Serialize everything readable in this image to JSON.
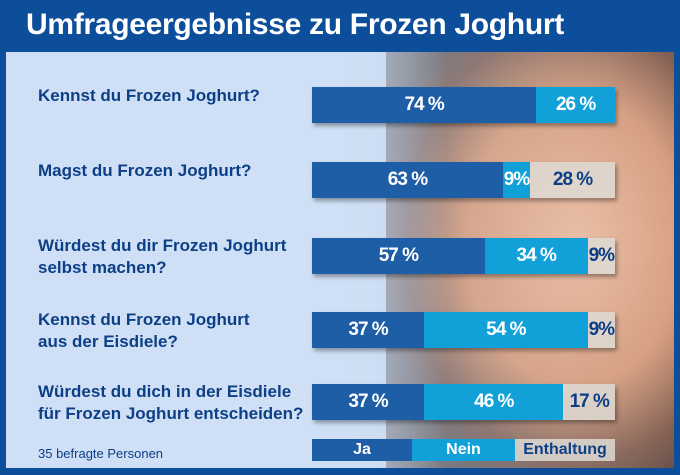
{
  "title": "Umfrageergebnisse zu Frozen Joghurt",
  "footnote": "35 befragte Personen",
  "colors": {
    "ja": "#1d5ea6",
    "nein": "#12a0d8",
    "enthaltung": "#dedad4",
    "header": "#0d4e9b"
  },
  "chart_data": {
    "type": "bar",
    "orientation": "horizontal",
    "stacked": true,
    "unit": "%",
    "categories": [
      [
        "Kennst du Frozen Joghurt?"
      ],
      [
        "Magst du Frozen Joghurt?"
      ],
      [
        "Würdest du dir Frozen Joghurt",
        "selbst machen?"
      ],
      [
        "Kennst du Frozen Joghurt",
        "aus der Eisdiele?"
      ],
      [
        "Würdest du dich in der Eisdiele",
        "für Frozen Joghurt entscheiden?"
      ]
    ],
    "series": [
      {
        "name": "Ja",
        "values": [
          74,
          63,
          57,
          37,
          37
        ],
        "labels": [
          "74 %",
          "63 %",
          "57 %",
          "37 %",
          "37 %"
        ]
      },
      {
        "name": "Nein",
        "values": [
          26,
          9,
          34,
          54,
          46
        ],
        "labels": [
          "26 %",
          "9%",
          "34 %",
          "54 %",
          "46 %"
        ]
      },
      {
        "name": "Enthaltung",
        "values": [
          0,
          28,
          9,
          9,
          17
        ],
        "labels": [
          "",
          "28 %",
          "9%",
          "9%",
          "17 %"
        ]
      }
    ],
    "legend": {
      "placement": "bottom",
      "entries": [
        "Ja",
        "Nein",
        "Enthaltung"
      ]
    }
  }
}
